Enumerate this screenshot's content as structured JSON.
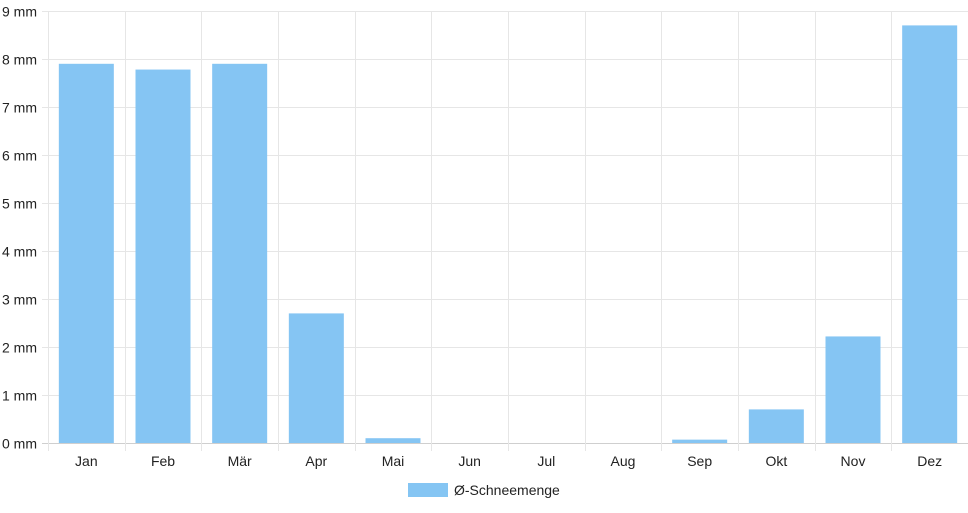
{
  "chart_data": {
    "type": "bar",
    "categories": [
      "Jan",
      "Feb",
      "Mär",
      "Apr",
      "Mai",
      "Jun",
      "Jul",
      "Aug",
      "Sep",
      "Okt",
      "Nov",
      "Dez"
    ],
    "series": [
      {
        "name": "Ø-Schneemenge",
        "values": [
          7.9,
          7.78,
          7.9,
          2.7,
          0.1,
          0,
          0,
          0,
          0.07,
          0.7,
          2.22,
          8.7
        ],
        "color": "#85c5f3"
      }
    ],
    "y_unit": "mm",
    "ylim": [
      0,
      9
    ],
    "y_ticks": [
      0,
      1,
      2,
      3,
      4,
      5,
      6,
      7,
      8,
      9
    ],
    "y_tick_labels": [
      "0 mm",
      "1 mm",
      "2 mm",
      "3 mm",
      "4 mm",
      "5 mm",
      "6 mm",
      "7 mm",
      "8 mm",
      "9 mm"
    ],
    "grid": true,
    "legend_position": "bottom"
  }
}
